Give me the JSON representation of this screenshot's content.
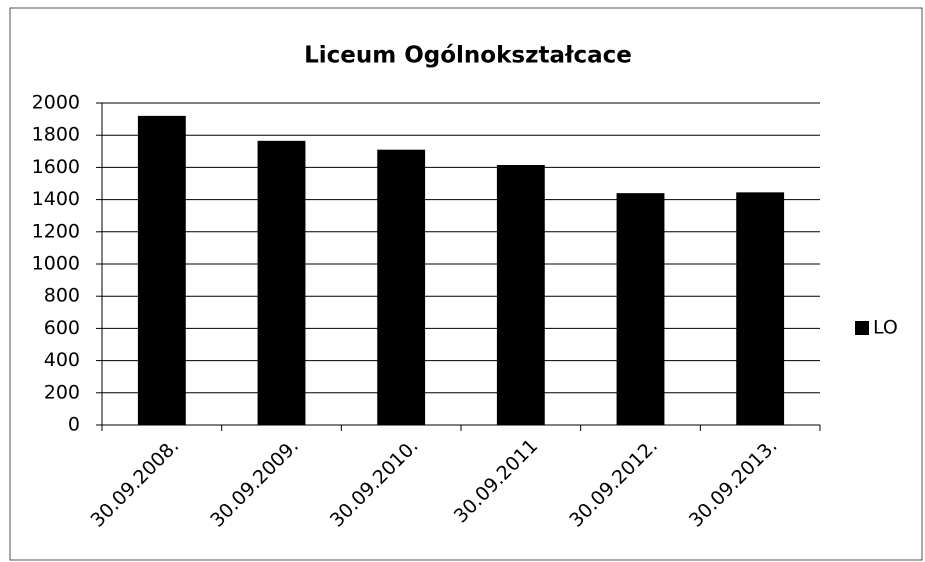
{
  "chart_data": {
    "type": "bar",
    "title": "Liceum Ogólnokształcace",
    "categories": [
      "30.09.2008.",
      "30.09.2009.",
      "30.09.2010.",
      "30.09.2011",
      "30.09.2012.",
      "30.09.2013."
    ],
    "series": [
      {
        "name": "LO",
        "color": "#000000",
        "values": [
          1920,
          1765,
          1710,
          1615,
          1440,
          1445
        ]
      }
    ],
    "ylim": [
      0,
      2000
    ],
    "yticks": [
      0,
      200,
      400,
      600,
      800,
      1000,
      1200,
      1400,
      1600,
      1800,
      2000
    ],
    "grid": true,
    "legend": "right"
  }
}
